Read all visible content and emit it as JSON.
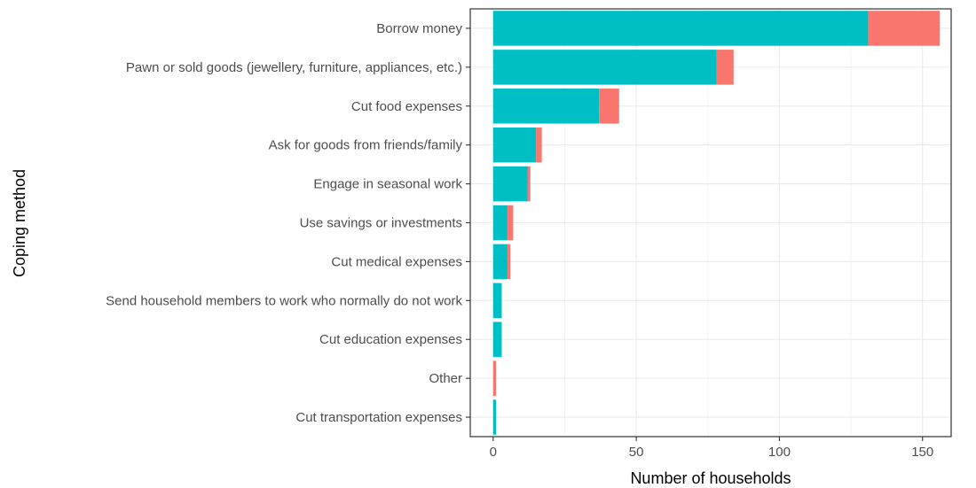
{
  "chart_data": {
    "type": "bar",
    "orientation": "horizontal",
    "stacked": true,
    "xlabel": "Number of households",
    "ylabel": "Coping method",
    "xlim": [
      -8,
      160
    ],
    "xticks": [
      0,
      50,
      100,
      150
    ],
    "grid": true,
    "legend": "none",
    "categories": [
      "Borrow money",
      "Pawn or sold goods (jewellery, furniture, appliances, etc.)",
      "Cut food expenses",
      "Ask for goods from friends/family",
      "Engage in seasonal work",
      "Use savings or investments",
      "Cut medical expenses",
      "Send household members to work who normally do not work",
      "Cut education expenses",
      "Other",
      "Cut transportation expenses"
    ],
    "series": [
      {
        "color": "#00BFC4",
        "values": [
          131,
          78,
          37,
          15,
          12,
          5,
          5,
          3,
          3,
          0,
          1
        ]
      },
      {
        "color": "#F8766D",
        "values": [
          25,
          6,
          7,
          2,
          1,
          2,
          1,
          0,
          0,
          1,
          0
        ]
      }
    ]
  }
}
